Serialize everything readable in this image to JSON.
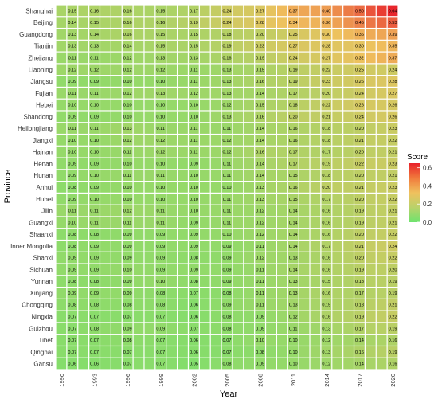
{
  "chart_data": {
    "type": "heatmap",
    "xlabel": "Year",
    "ylabel": "Province",
    "x_tick_labels": [
      "1990",
      "1993",
      "1996",
      "1999",
      "2002",
      "2005",
      "2008",
      "2011",
      "2014",
      "2017",
      "2020"
    ],
    "rows": [
      "Shanghai",
      "Beijing",
      "Guangdong",
      "Tianjin",
      "Zhejiang",
      "Liaoning",
      "Jiangsu",
      "Fujian",
      "Hebei",
      "Shandong",
      "Heilongjiang",
      "Jiangxi",
      "Hainan",
      "Henan",
      "Hunan",
      "Anhui",
      "Hubei",
      "Jilin",
      "Guangxi",
      "Shaanxi",
      "Inner Mongolia",
      "Shanxi",
      "Sichuan",
      "Yunnan",
      "Xinjiang",
      "Chongqing",
      "Ningxia",
      "Guizhou",
      "Tibet",
      "Qinghai",
      "Gansu"
    ],
    "num_columns": 31,
    "label_columns": [
      1,
      3,
      6,
      9,
      12,
      15,
      18,
      21,
      24,
      27,
      30
    ],
    "label_values": {
      "Shanghai": [
        "0.15",
        "0.16",
        "0.16",
        "0.15",
        "0.17",
        "0.24",
        "0.27",
        "0.37",
        "0.40",
        "0.50",
        "0.64"
      ],
      "Beijing": [
        "0.14",
        "0.15",
        "0.16",
        "0.16",
        "0.19",
        "0.24",
        "0.28",
        "0.34",
        "0.36",
        "0.45",
        "0.53"
      ],
      "Guangdong": [
        "0.13",
        "0.14",
        "0.16",
        "0.15",
        "0.15",
        "0.18",
        "0.20",
        "0.25",
        "0.30",
        "0.36",
        "0.39"
      ],
      "Tianjin": [
        "0.13",
        "0.13",
        "0.14",
        "0.15",
        "0.15",
        "0.19",
        "0.23",
        "0.27",
        "0.28",
        "0.30",
        "0.35"
      ],
      "Zhejiang": [
        "0.11",
        "0.11",
        "0.12",
        "0.13",
        "0.13",
        "0.16",
        "0.19",
        "0.24",
        "0.27",
        "0.32",
        "0.37"
      ],
      "Liaoning": [
        "0.12",
        "0.12",
        "0.12",
        "0.12",
        "0.11",
        "0.13",
        "0.15",
        "0.19",
        "0.22",
        "0.25",
        "0.24"
      ],
      "Jiangsu": [
        "0.09",
        "0.09",
        "0.10",
        "0.10",
        "0.11",
        "0.13",
        "0.16",
        "0.19",
        "0.23",
        "0.26",
        "0.28"
      ],
      "Fujian": [
        "0.11",
        "0.11",
        "0.12",
        "0.13",
        "0.12",
        "0.13",
        "0.14",
        "0.17",
        "0.20",
        "0.24",
        "0.27"
      ],
      "Hebei": [
        "0.10",
        "0.10",
        "0.10",
        "0.10",
        "0.10",
        "0.12",
        "0.15",
        "0.18",
        "0.22",
        "0.26",
        "0.26"
      ],
      "Shandong": [
        "0.09",
        "0.09",
        "0.10",
        "0.10",
        "0.10",
        "0.13",
        "0.16",
        "0.20",
        "0.21",
        "0.24",
        "0.26"
      ],
      "Heilongjiang": [
        "0.11",
        "0.11",
        "0.13",
        "0.11",
        "0.11",
        "0.11",
        "0.14",
        "0.16",
        "0.18",
        "0.20",
        "0.23"
      ],
      "Jiangxi": [
        "0.10",
        "0.10",
        "0.12",
        "0.12",
        "0.11",
        "0.12",
        "0.14",
        "0.16",
        "0.18",
        "0.21",
        "0.22"
      ],
      "Hainan": [
        "0.10",
        "0.10",
        "0.11",
        "0.12",
        "0.11",
        "0.12",
        "0.16",
        "0.17",
        "0.17",
        "0.20",
        "0.21"
      ],
      "Henan": [
        "0.09",
        "0.09",
        "0.10",
        "0.10",
        "0.09",
        "0.11",
        "0.14",
        "0.17",
        "0.19",
        "0.22",
        "0.23"
      ],
      "Hunan": [
        "0.09",
        "0.10",
        "0.11",
        "0.11",
        "0.10",
        "0.11",
        "0.14",
        "0.15",
        "0.18",
        "0.20",
        "0.21"
      ],
      "Anhui": [
        "0.08",
        "0.09",
        "0.10",
        "0.10",
        "0.10",
        "0.10",
        "0.13",
        "0.16",
        "0.20",
        "0.21",
        "0.23"
      ],
      "Hubei": [
        "0.09",
        "0.10",
        "0.10",
        "0.10",
        "0.10",
        "0.11",
        "0.13",
        "0.15",
        "0.17",
        "0.20",
        "0.22"
      ],
      "Jilin": [
        "0.11",
        "0.11",
        "0.12",
        "0.11",
        "0.10",
        "0.11",
        "0.12",
        "0.14",
        "0.16",
        "0.19",
        "0.21"
      ],
      "Guangxi": [
        "0.10",
        "0.11",
        "0.11",
        "0.11",
        "0.09",
        "0.11",
        "0.12",
        "0.14",
        "0.16",
        "0.19",
        "0.21"
      ],
      "Shaanxi": [
        "0.08",
        "0.08",
        "0.09",
        "0.09",
        "0.09",
        "0.10",
        "0.12",
        "0.14",
        "0.16",
        "0.20",
        "0.22"
      ],
      "Inner Mongolia": [
        "0.08",
        "0.09",
        "0.09",
        "0.09",
        "0.09",
        "0.09",
        "0.11",
        "0.14",
        "0.17",
        "0.21",
        "0.24"
      ],
      "Shanxi": [
        "0.09",
        "0.09",
        "0.09",
        "0.09",
        "0.08",
        "0.09",
        "0.12",
        "0.13",
        "0.16",
        "0.20",
        "0.22"
      ],
      "Sichuan": [
        "0.09",
        "0.09",
        "0.10",
        "0.09",
        "0.09",
        "0.09",
        "0.11",
        "0.14",
        "0.16",
        "0.19",
        "0.20"
      ],
      "Yunnan": [
        "0.08",
        "0.08",
        "0.09",
        "0.10",
        "0.08",
        "0.09",
        "0.11",
        "0.13",
        "0.15",
        "0.18",
        "0.19"
      ],
      "Xinjiang": [
        "0.09",
        "0.09",
        "0.09",
        "0.08",
        "0.07",
        "0.08",
        "0.11",
        "0.13",
        "0.16",
        "0.17",
        "0.19"
      ],
      "Chongqing": [
        "0.08",
        "0.08",
        "0.08",
        "0.08",
        "0.06",
        "0.09",
        "0.11",
        "0.13",
        "0.15",
        "0.18",
        "0.21"
      ],
      "Ningxia": [
        "0.07",
        "0.07",
        "0.07",
        "0.07",
        "0.06",
        "0.08",
        "0.09",
        "0.12",
        "0.16",
        "0.19",
        "0.22"
      ],
      "Guizhou": [
        "0.07",
        "0.08",
        "0.09",
        "0.09",
        "0.07",
        "0.08",
        "0.09",
        "0.11",
        "0.13",
        "0.17",
        "0.19"
      ],
      "Tibet": [
        "0.07",
        "0.07",
        "0.08",
        "0.07",
        "0.06",
        "0.07",
        "0.10",
        "0.10",
        "0.12",
        "0.14",
        "0.16"
      ],
      "Qinghai": [
        "0.07",
        "0.07",
        "0.07",
        "0.07",
        "0.06",
        "0.07",
        "0.08",
        "0.10",
        "0.13",
        "0.16",
        "0.19"
      ],
      "Gansu": [
        "0.06",
        "0.06",
        "0.07",
        "0.07",
        "0.05",
        "0.08",
        "0.09",
        "0.10",
        "0.12",
        "0.14",
        "0.16"
      ]
    },
    "color_scale": {
      "low": "#6ee36e",
      "high": "#e8212a",
      "domain": [
        0,
        0.65
      ],
      "legend_title": "Score",
      "legend_ticks": [
        "0.0",
        "0.2",
        "0.4",
        "0.6"
      ]
    },
    "cell_border_color": "#ffffff",
    "grid": false,
    "legend_position": "right"
  }
}
